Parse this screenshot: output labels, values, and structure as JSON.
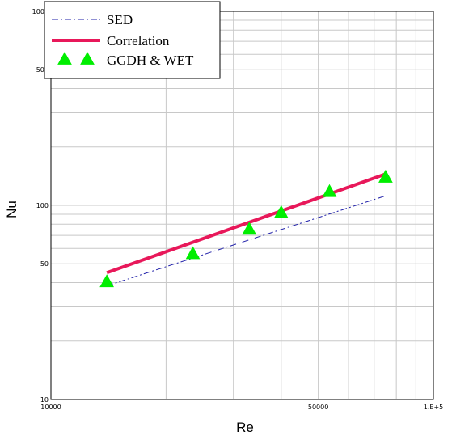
{
  "chart_data": {
    "type": "line",
    "xlabel": "Re",
    "ylabel": "Nu",
    "xscale": "log",
    "yscale": "log",
    "xlim": [
      10000,
      100000
    ],
    "ylim": [
      10,
      1000
    ],
    "grid": true,
    "legend_position": "top-left",
    "x_tick_labels": [
      {
        "value": 10000,
        "label": "10000"
      },
      {
        "value": 50000,
        "label": "50000"
      },
      {
        "value": 100000,
        "label": "1.E+5"
      }
    ],
    "y_tick_labels": [
      {
        "value": 10,
        "label": "10"
      },
      {
        "value": 50,
        "label": "50"
      },
      {
        "value": 100,
        "label": "100"
      },
      {
        "value": 500,
        "label": "500"
      },
      {
        "value": 1000,
        "label": "1000"
      }
    ],
    "series": [
      {
        "name": "SED",
        "style": "dash-dot",
        "color": "#2222aa",
        "x": [
          14000,
          75000
        ],
        "y": [
          38.5,
          112
        ]
      },
      {
        "name": "Correlation",
        "style": "solid",
        "color": "#e8185a",
        "x": [
          14000,
          75000
        ],
        "y": [
          45,
          145
        ]
      },
      {
        "name": "GGDH & WET",
        "style": "triangle-marker",
        "color": "#00ee00",
        "x": [
          14000,
          23500,
          33000,
          40000,
          53500,
          75000
        ],
        "y": [
          40.5,
          56.5,
          75.5,
          92,
          118,
          140
        ]
      }
    ]
  }
}
